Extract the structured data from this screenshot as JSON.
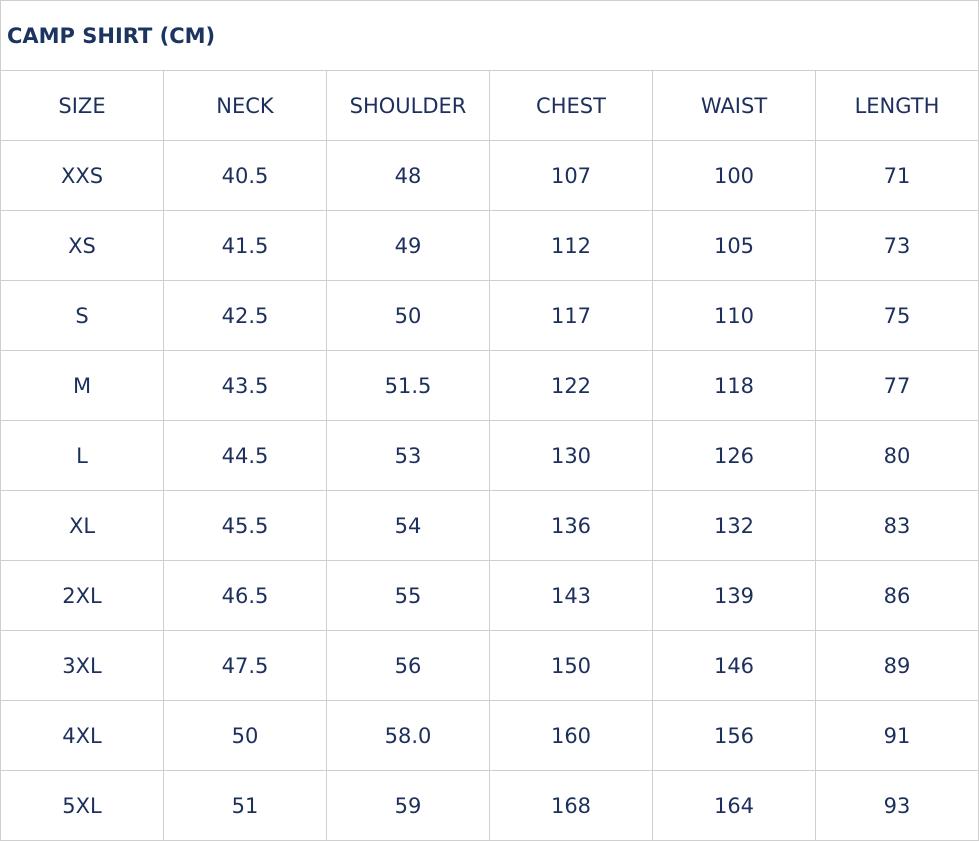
{
  "title": "CAMP SHIRT (CM)",
  "columns": [
    "SIZE",
    "NECK",
    "SHOULDER",
    "CHEST",
    "WAIST",
    "LENGTH"
  ],
  "rows": [
    [
      "XXS",
      "40.5",
      "48",
      "107",
      "100",
      "71"
    ],
    [
      "XS",
      "41.5",
      "49",
      "112",
      "105",
      "73"
    ],
    [
      "S",
      "42.5",
      "50",
      "117",
      "110",
      "75"
    ],
    [
      "M",
      "43.5",
      "51.5",
      "122",
      "118",
      "77"
    ],
    [
      "L",
      "44.5",
      "53",
      "130",
      "126",
      "80"
    ],
    [
      "XL",
      "45.5",
      "54",
      "136",
      "132",
      "83"
    ],
    [
      "2XL",
      "46.5",
      "55",
      "143",
      "139",
      "86"
    ],
    [
      "3XL",
      "47.5",
      "56",
      "150",
      "146",
      "89"
    ],
    [
      "4XL",
      "50",
      "58.0",
      "160",
      "156",
      "91"
    ],
    [
      "5XL",
      "51",
      "59",
      "168",
      "164",
      "93"
    ]
  ],
  "colors": {
    "text": "#1d2f5c",
    "border": "#cfcfcf"
  }
}
